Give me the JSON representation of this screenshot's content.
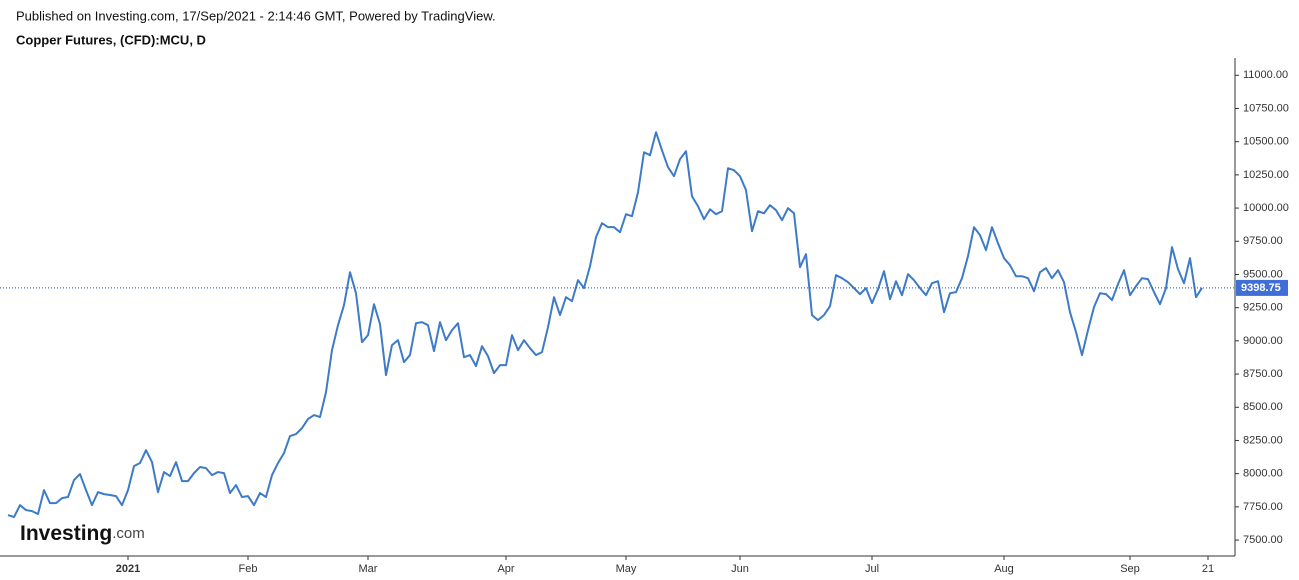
{
  "chart_data": {
    "type": "line",
    "published": "Published on Investing.com, 17/Sep/2021 - 2:14:46 GMT, Powered by TradingView.",
    "title": "Copper Futures, (CFD):MCU, D",
    "logo_main": "Investing",
    "logo_suffix": ".com",
    "color": "#3d7bc6",
    "ylim": [
      7380,
      11130
    ],
    "yticks": [
      {
        "value": 7500,
        "label": "7500.00"
      },
      {
        "value": 7750,
        "label": "7750.00"
      },
      {
        "value": 8000,
        "label": "8000.00"
      },
      {
        "value": 8250,
        "label": "8250.00"
      },
      {
        "value": 8500,
        "label": "8500.00"
      },
      {
        "value": 8750,
        "label": "8750.00"
      },
      {
        "value": 9000,
        "label": "9000.00"
      },
      {
        "value": 9250,
        "label": "9250.00"
      },
      {
        "value": 9500,
        "label": "9500.00"
      },
      {
        "value": 9750,
        "label": "9750.00"
      },
      {
        "value": 10000,
        "label": "10000.00"
      },
      {
        "value": 10250,
        "label": "10250.00"
      },
      {
        "value": 10500,
        "label": "10500.00"
      },
      {
        "value": 10750,
        "label": "10750.00"
      },
      {
        "value": 11000,
        "label": "11000.00"
      }
    ],
    "categories": [
      null,
      null,
      null,
      null,
      null,
      null,
      null,
      null,
      null,
      null,
      null,
      null,
      null,
      null,
      null,
      null,
      null,
      null,
      null,
      null,
      "2021",
      null,
      null,
      null,
      null,
      null,
      null,
      null,
      null,
      null,
      null,
      null,
      null,
      null,
      null,
      null,
      null,
      null,
      null,
      null,
      "Feb",
      null,
      null,
      null,
      null,
      null,
      null,
      null,
      null,
      null,
      null,
      null,
      null,
      null,
      null,
      null,
      null,
      null,
      null,
      null,
      "Mar",
      null,
      null,
      null,
      null,
      null,
      null,
      null,
      null,
      null,
      null,
      null,
      null,
      null,
      null,
      null,
      null,
      null,
      null,
      null,
      null,
      null,
      null,
      "Apr",
      null,
      null,
      null,
      null,
      null,
      null,
      null,
      null,
      null,
      null,
      null,
      null,
      null,
      null,
      null,
      null,
      null,
      null,
      null,
      "May",
      null,
      null,
      null,
      null,
      null,
      null,
      null,
      null,
      null,
      null,
      null,
      null,
      null,
      null,
      null,
      null,
      null,
      null,
      "Jun",
      null,
      null,
      null,
      null,
      null,
      null,
      null,
      null,
      null,
      null,
      null,
      null,
      null,
      null,
      null,
      null,
      null,
      null,
      null,
      null,
      null,
      "Jul",
      null,
      null,
      null,
      null,
      null,
      null,
      null,
      null,
      null,
      null,
      null,
      null,
      null,
      null,
      null,
      null,
      null,
      null,
      null,
      null,
      null,
      "Aug",
      null,
      null,
      null,
      null,
      null,
      null,
      null,
      null,
      null,
      null,
      null,
      null,
      null,
      null,
      null,
      null,
      null,
      null,
      null,
      null,
      "Sep",
      null,
      null,
      null,
      null,
      null,
      null,
      null,
      null,
      null,
      null,
      null,
      null,
      "21"
    ],
    "values": [
      7688,
      7673,
      7763,
      7726,
      7718,
      7696,
      7876,
      7778,
      7778,
      7816,
      7824,
      7952,
      7997,
      7876,
      7763,
      7861,
      7846,
      7839,
      7831,
      7763,
      7876,
      8057,
      8080,
      8177,
      8087,
      7861,
      8012,
      7982,
      8087,
      7944,
      7944,
      8004,
      8050,
      8042,
      7989,
      8012,
      8004,
      7854,
      7914,
      7824,
      7831,
      7763,
      7854,
      7824,
      7989,
      8080,
      8155,
      8283,
      8298,
      8343,
      8411,
      8441,
      8426,
      8614,
      8930,
      9118,
      9269,
      9517,
      9359,
      8990,
      9043,
      9276,
      9126,
      8742,
      8968,
      9005,
      8840,
      8893,
      9133,
      9141,
      9118,
      8923,
      9141,
      9005,
      9081,
      9133,
      8877,
      8893,
      8810,
      8960,
      8885,
      8757,
      8817,
      8817,
      9043,
      8930,
      9005,
      8945,
      8893,
      8915,
      9103,
      9329,
      9194,
      9329,
      9299,
      9457,
      9397,
      9562,
      9781,
      9886,
      9856,
      9856,
      9818,
      9954,
      9939,
      10119,
      10420,
      10398,
      10571,
      10435,
      10308,
      10240,
      10368,
      10428,
      10089,
      10014,
      9916,
      9991,
      9954,
      9976,
      10300,
      10285,
      10240,
      10135,
      9826,
      9976,
      9961,
      10022,
      9984,
      9909,
      9999,
      9961,
      9555,
      9653,
      9194,
      9156,
      9194,
      9261,
      9495,
      9472,
      9442,
      9397,
      9352,
      9397,
      9284,
      9389,
      9525,
      9314,
      9449,
      9344,
      9502,
      9457,
      9397,
      9344,
      9434,
      9449,
      9216,
      9359,
      9367,
      9472,
      9638,
      9856,
      9796,
      9683,
      9856,
      9736,
      9623,
      9570,
      9487,
      9487,
      9472,
      9374,
      9517,
      9548,
      9472,
      9532,
      9442,
      9216,
      9066,
      8893,
      9081,
      9254,
      9359,
      9352,
      9307,
      9427,
      9532,
      9344,
      9412,
      9472,
      9465,
      9367,
      9276,
      9397,
      9706,
      9540,
      9434,
      9623,
      9329,
      9398.75,
      null
    ]
  }
}
